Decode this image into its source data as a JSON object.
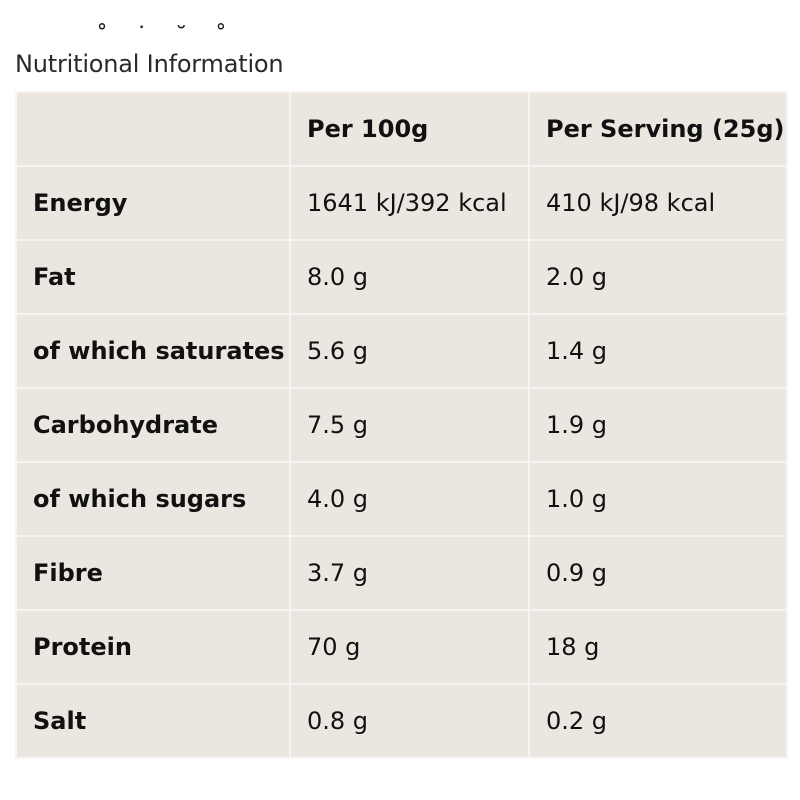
{
  "section": {
    "title": "Nutritional Information"
  },
  "table": {
    "headers": [
      "",
      "Per 100g",
      "Per Serving (25g)"
    ],
    "rows": [
      [
        "Energy",
        "1641 kJ/392 kcal",
        "410 kJ/98 kcal"
      ],
      [
        "Fat",
        "8.0 g",
        "2.0 g"
      ],
      [
        "of which saturates",
        "5.6 g",
        "1.4 g"
      ],
      [
        "Carbohydrate",
        "7.5 g",
        "1.9 g"
      ],
      [
        "of which sugars",
        "4.0 g",
        "1.0 g"
      ],
      [
        "Fibre",
        "3.7 g",
        "0.9 g"
      ],
      [
        "Protein",
        "70 g",
        "18 g"
      ],
      [
        "Salt",
        "0.8 g",
        "0.2 g"
      ]
    ]
  },
  "colors": {
    "table_background": "#ebe6df",
    "table_border": "#f7f5f2",
    "text": "#111111"
  }
}
